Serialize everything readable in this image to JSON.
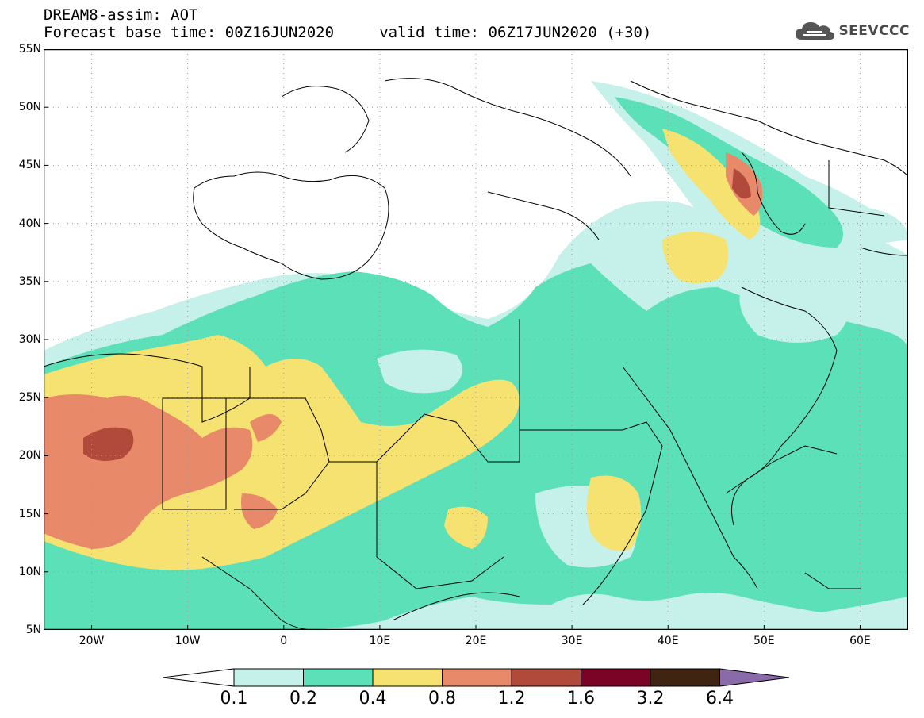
{
  "title": {
    "line1": "DREAM8-assim: AOT",
    "line2": "Forecast base time: 00Z16JUN2020     valid time: 06Z17JUN2020 (+30)"
  },
  "brand": {
    "name": "SEEVCCC",
    "icon": "cloud-icon"
  },
  "map": {
    "lat_range": [
      5,
      55
    ],
    "lon_range": [
      -25,
      65
    ],
    "lat_ticks": [
      "55N",
      "50N",
      "45N",
      "40N",
      "35N",
      "30N",
      "25N",
      "20N",
      "15N",
      "10N",
      "5N"
    ],
    "lon_ticks": [
      "20W",
      "10W",
      "0",
      "10E",
      "20E",
      "30E",
      "40E",
      "50E",
      "60E"
    ]
  },
  "legend": {
    "bins": [
      {
        "color": "#c6f0ea"
      },
      {
        "color": "#5be0b8"
      },
      {
        "color": "#f5e270"
      },
      {
        "color": "#e8896a"
      },
      {
        "color": "#b24a3c"
      },
      {
        "color": "#7b0426"
      },
      {
        "color": "#3f2412"
      },
      {
        "color": "#8a6aa8"
      }
    ],
    "labels": [
      "0.1",
      "0.2",
      "0.4",
      "0.8",
      "1.2",
      "1.6",
      "3.2",
      "6.4"
    ]
  },
  "colors": {
    "c1": "#c6f0ea",
    "c2": "#5be0b8",
    "c3": "#f5e270",
    "c4": "#e8896a",
    "c5": "#b24a3c",
    "border": "#000000"
  }
}
